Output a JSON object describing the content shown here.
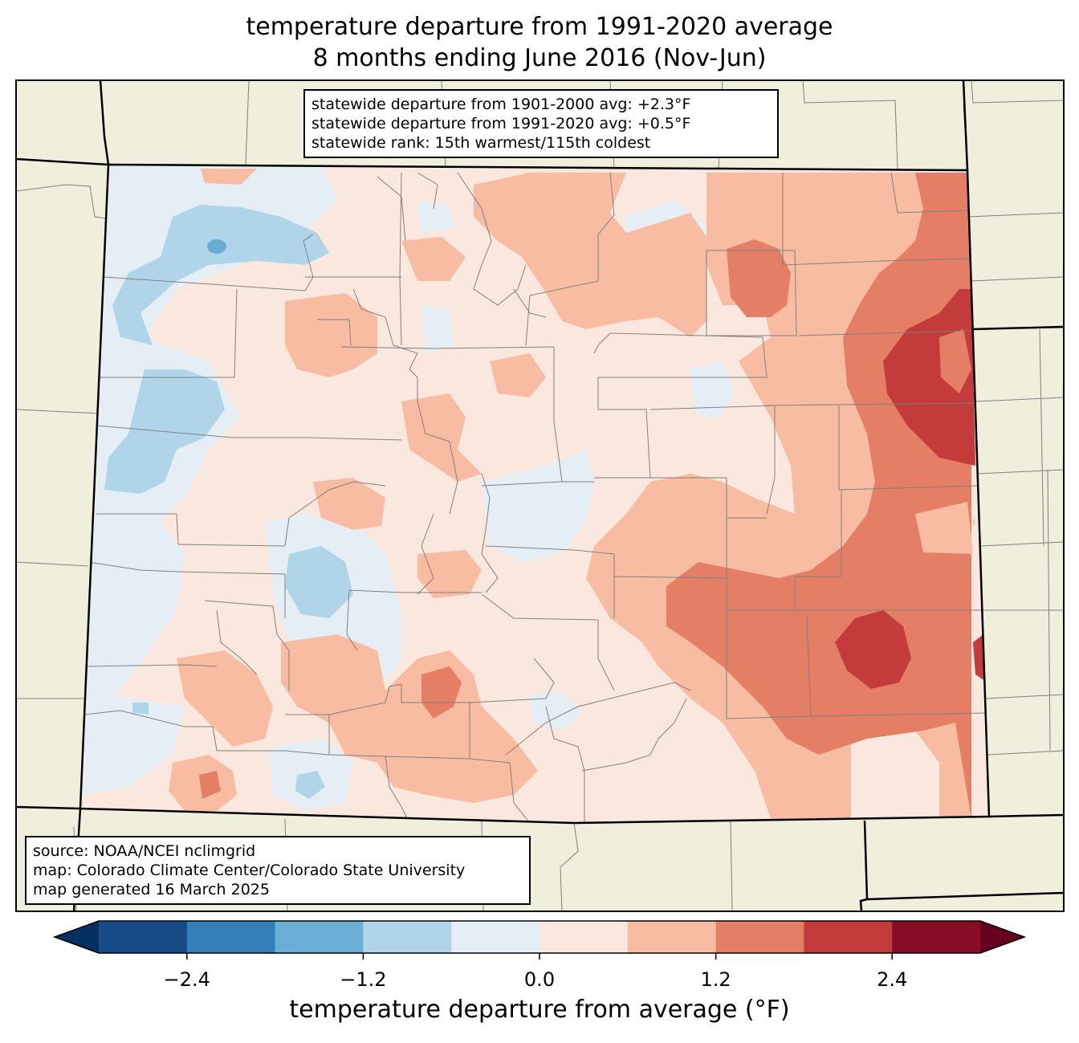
{
  "title": {
    "line1": "temperature departure from 1991-2020 average",
    "line2": "8 months ending June 2016 (Nov-Jun)"
  },
  "stats": {
    "line1": "statewide departure from 1901-2000 avg: +2.3°F",
    "line2": "statewide departure from 1991-2020 avg: +0.5°F",
    "line3": "statewide rank: 15th warmest/115th coldest"
  },
  "source": {
    "line1": "source: NOAA/NCEI nclimgrid",
    "line2": "map: Colorado Climate Center/Colorado State University",
    "line3": "map generated 16 March 2025"
  },
  "colorbar": {
    "label": "temperature departure from average (°F)",
    "ticks": [
      "−2.4",
      "−1.2",
      "0.0",
      "1.2",
      "2.4"
    ],
    "tick_values": [
      -2.4,
      -1.2,
      0.0,
      1.2,
      2.4
    ],
    "bounds": [
      -3.0,
      -2.4,
      -1.8,
      -1.2,
      -0.6,
      0.0,
      0.6,
      1.2,
      1.8,
      2.4,
      3.0
    ],
    "colors": [
      "#164b87",
      "#327fbb",
      "#6aaed5",
      "#b1d5e8",
      "#e5eef5",
      "#fae8de",
      "#f8bca2",
      "#e47f65",
      "#c33c3b",
      "#880d24"
    ],
    "under_color": "#053061",
    "over_color": "#67001f"
  },
  "colors": {
    "land_outside": "#f0efdc",
    "state_border": "#000000",
    "county_border": "#808080"
  }
}
